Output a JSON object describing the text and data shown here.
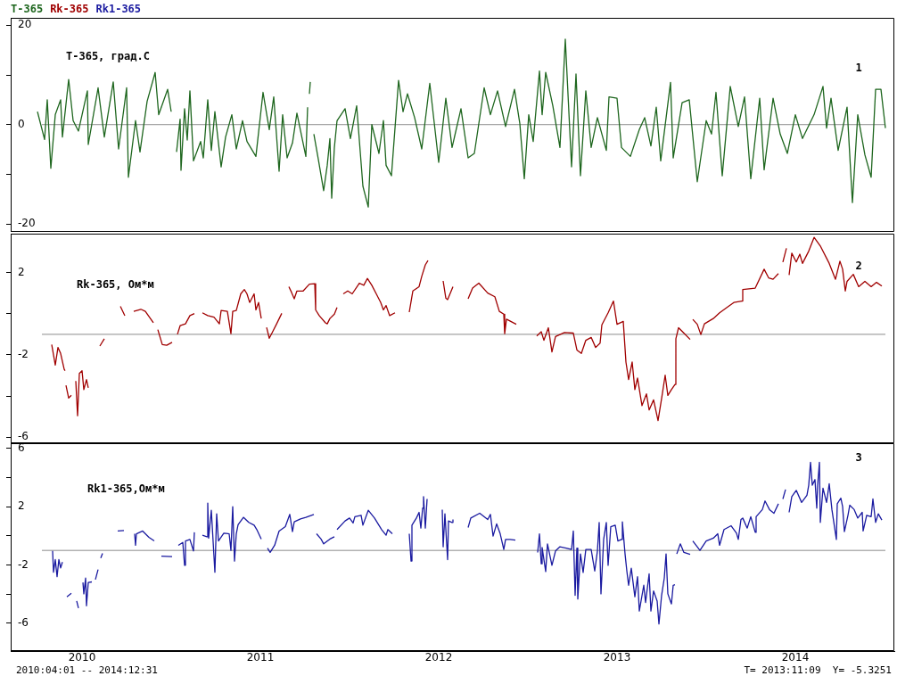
{
  "chart_data": [
    {
      "type": "line",
      "title": "T-365, град.С",
      "annotations": [
        "1"
      ],
      "legend": "top left",
      "tick_labels": "y",
      "grid": false,
      "xlim": [
        2009.6,
        2014.555
      ],
      "xticks": [
        2010,
        2011,
        2012,
        2013,
        2014
      ],
      "ylim": [
        -21.6,
        21.5
      ],
      "yticks": [
        20,
        {
          "value": 10,
          "label": null
        },
        0,
        {
          "value": -10,
          "label": null
        },
        -20
      ],
      "ref_lines": [
        {
          "axis": "y",
          "value": 0,
          "color": "#8c8c8c"
        }
      ],
      "series": [
        {
          "name": "T-365",
          "color": "#1e661e",
          "x": [
            2009.75,
            2009.79,
            2009.805,
            2009.825,
            2009.85,
            2009.88,
            2009.89,
            2009.925,
            2009.95,
            2009.98,
            2010.03,
            2010.035,
            2010.09,
            2010.125,
            2010.175,
            2010.205,
            2010.25,
            2010.26,
            2010.3,
            2010.325,
            2010.365,
            2010.41,
            2010.43,
            2010.48,
            2010.5,
            2010.51,
            2010.53,
            2010.55,
            2010.555,
            2010.575,
            2010.59,
            2010.605,
            2010.625,
            2010.665,
            2010.68,
            2010.705,
            2010.725,
            2010.745,
            2010.78,
            2010.805,
            2010.84,
            2010.865,
            2010.9,
            2010.925,
            2010.975,
            2011.015,
            2011.05,
            2011.075,
            2011.105,
            2011.125,
            2011.15,
            2011.18,
            2011.205,
            2011.255,
            2011.265,
            2011.27,
            2011.275,
            2011.28,
            2011.285,
            2011.3,
            2011.325,
            2011.355,
            2011.375,
            2011.39,
            2011.4,
            2011.415,
            2011.43,
            2011.475,
            2011.505,
            2011.54,
            2011.575,
            2011.605,
            2011.625,
            2011.665,
            2011.69,
            2011.705,
            2011.735,
            2011.775,
            2011.8,
            2011.825,
            2011.865,
            2011.905,
            2011.95,
            2012,
            2012.04,
            2012.075,
            2012.125,
            2012.165,
            2012.2,
            2012.255,
            2012.29,
            2012.33,
            2012.375,
            2012.425,
            2012.455,
            2012.48,
            2012.505,
            2012.53,
            2012.565,
            2012.58,
            2012.6,
            2012.64,
            2012.68,
            2012.71,
            2012.745,
            2012.77,
            2012.795,
            2012.825,
            2012.855,
            2012.89,
            2012.94,
            2012.955,
            2013,
            2013.025,
            2013.075,
            2013.125,
            2013.155,
            2013.19,
            2013.22,
            2013.245,
            2013.3,
            2013.315,
            2013.365,
            2013.405,
            2013.45,
            2013.5,
            2013.53,
            2013.555,
            2013.59,
            2013.635,
            2013.68,
            2013.715,
            2013.75,
            2013.8,
            2013.825,
            2013.875,
            2013.915,
            2013.955,
            2014,
            2014.04,
            2014.105,
            2014.155,
            2014.175,
            2014.2,
            2014.24,
            2014.29,
            2014.32,
            2014.35,
            2014.39,
            2014.425,
            2014.45,
            2014.48,
            2014.505
          ],
          "values": [
            2.6,
            -3,
            5,
            -8.8,
            2,
            5,
            -2.5,
            9.1,
            0.8,
            -1.3,
            6.8,
            -4,
            7.4,
            -2.5,
            8.6,
            -4.9,
            7.4,
            -10.6,
            0.8,
            -5.5,
            4.7,
            10.5,
            2,
            7.1,
            2.6,
            null,
            -5.5,
            1.1,
            -9.2,
            3.2,
            -3.1,
            6.8,
            -7.3,
            -3.4,
            -6.7,
            5,
            -5.2,
            2.6,
            -8.5,
            -2.5,
            2,
            -4.9,
            0.8,
            -3.4,
            -6.4,
            6.5,
            -1,
            5.6,
            -9.4,
            2,
            -6.7,
            -3.7,
            2.3,
            -6.4,
            3.5,
            null,
            6.2,
            8.6,
            null,
            -1.9,
            -7,
            -13.3,
            -8.2,
            -2.8,
            -14.8,
            -4.6,
            0.8,
            3.2,
            -2.8,
            3.8,
            -12.4,
            -16.6,
            0,
            -5.8,
            0.8,
            -8.2,
            -10.3,
            8.9,
            2.6,
            6.2,
            1.4,
            -4.9,
            8.3,
            -7.6,
            5.3,
            -4.6,
            3.2,
            -6.7,
            -5.8,
            7.4,
            2,
            6.8,
            -0.4,
            7.1,
            0.2,
            -10.9,
            2,
            -3.4,
            10.8,
            2,
            10.5,
            3.8,
            -4.6,
            17.2,
            -8.5,
            10.2,
            -10.3,
            6.8,
            -4.6,
            1.4,
            -5.2,
            5.6,
            5.3,
            -4.6,
            -6.4,
            -1,
            1.4,
            -4.3,
            3.5,
            -7.3,
            8.5,
            -6.7,
            4.4,
            5,
            -11.5,
            0.8,
            -1.9,
            6.5,
            -10.3,
            7.7,
            -0.4,
            5.6,
            -10.9,
            5.3,
            -9.1,
            5.3,
            -1.9,
            -5.8,
            2,
            -2.8,
            2,
            7.7,
            -0.7,
            5.3,
            -5.2,
            3.5,
            -15.7,
            2,
            -6.1,
            -10.6,
            7.1,
            7.1,
            -0.7
          ]
        }
      ]
    },
    {
      "type": "line",
      "title": "Rk-365, Ом*м",
      "annotations": [
        "2"
      ],
      "legend": "top left",
      "tick_labels": "y",
      "grid": false,
      "xlim": [
        2009.6,
        2014.555
      ],
      "xticks": [
        2010,
        2011,
        2012,
        2013,
        2014
      ],
      "ylim": [
        -6.3,
        3.9
      ],
      "yticks": [
        2,
        {
          "value": 0,
          "label": null
        },
        -2,
        {
          "value": -4,
          "label": null
        },
        -6
      ],
      "ref_lines": [
        {
          "axis": "y",
          "value": -1,
          "color": "#8c8c8c"
        }
      ],
      "series": [
        {
          "name": "Rk-365",
          "color": "#a00000",
          "x": [
            2009.83,
            2009.85,
            2009.865,
            2009.88,
            2009.9,
            2009.905,
            2009.907,
            2009.91,
            2009.925,
            2009.94,
            2009.95,
            2009.965,
            2009.975,
            2009.985,
            2010,
            2010.01,
            2010.025,
            2010.035,
            2010.05,
            2010.1,
            2010.125,
            2010.15,
            2010.215,
            2010.24,
            2010.245,
            2010.29,
            2010.33,
            2010.355,
            2010.4,
            2010.41,
            2010.425,
            2010.45,
            2010.475,
            2010.505,
            2010.51,
            2010.535,
            2010.55,
            2010.58,
            2010.605,
            2010.63,
            2010.65,
            2010.675,
            2010.705,
            2010.74,
            2010.77,
            2010.78,
            2010.815,
            2010.835,
            2010.845,
            2010.865,
            2010.89,
            2010.91,
            2010.925,
            2010.94,
            2010.965,
            2010.975,
            2010.99,
            2011.005,
            2011.01,
            2011.035,
            2011.05,
            2011.065,
            2011.09,
            2011.12,
            2011.13,
            2011.16,
            2011.175,
            2011.19,
            2011.205,
            2011.24,
            2011.275,
            2011.305,
            2011.31,
            2011.33,
            2011.365,
            2011.375,
            2011.39,
            2011.415,
            2011.43,
            2011.44,
            2011.465,
            2011.49,
            2011.515,
            2011.555,
            2011.58,
            2011.6,
            2011.625,
            2011.65,
            2011.675,
            2011.69,
            2011.705,
            2011.725,
            2011.755,
            2011.8,
            2011.835,
            2011.855,
            2011.89,
            2011.905,
            2011.925,
            2011.94,
            2011.96,
            2012.025,
            2012.04,
            2012.05,
            2012.08,
            2012.1,
            2012.165,
            2012.19,
            2012.225,
            2012.275,
            2012.315,
            2012.34,
            2012.365,
            2012.37,
            2012.38,
            2012.435,
            2012.5,
            2012.55,
            2012.575,
            2012.59,
            2012.615,
            2012.635,
            2012.655,
            2012.705,
            2012.755,
            2012.775,
            2012.8,
            2012.825,
            2012.855,
            2012.88,
            2012.905,
            2012.915,
            2012.95,
            2012.98,
            2013,
            2013.035,
            2013.05,
            2013.065,
            2013.085,
            2013.1,
            2013.115,
            2013.14,
            2013.165,
            2013.18,
            2013.205,
            2013.23,
            2013.25,
            2013.27,
            2013.285,
            2013.305,
            2013.325,
            2013.33,
            2013.345,
            2013.375,
            2013.41,
            2013.42,
            2013.425,
            2013.45,
            2013.47,
            2013.49,
            2013.54,
            2013.575,
            2013.625,
            2013.655,
            2013.7,
            2013.705,
            2013.775,
            2013.825,
            2013.85,
            2013.875,
            2013.905,
            2013.91,
            2013.93,
            2013.95,
            2013.96,
            2013.965,
            2013.98,
            2014.005,
            2014.025,
            2014.04,
            2014.075,
            2014.105,
            2014.14,
            2014.19,
            2014.225,
            2014.25,
            2014.265,
            2014.28,
            2014.29,
            2014.325,
            2014.355,
            2014.39,
            2014.425,
            2014.455,
            2014.485
          ],
          "values": [
            -1.5,
            -2.5,
            -1.64,
            -1.93,
            -2.7,
            -2.77,
            null,
            -3.48,
            -4.1,
            -3.97,
            null,
            -3.27,
            -4.96,
            -2.9,
            -2.77,
            -3.69,
            -3.2,
            -3.6,
            null,
            -1.57,
            -1.22,
            null,
            0.36,
            -0.09,
            null,
            0.12,
            0.22,
            0.12,
            -0.44,
            null,
            -0.77,
            -1.5,
            -1.53,
            -1.39,
            null,
            -1,
            -0.58,
            -0.49,
            -0.09,
            0.01,
            null,
            0.05,
            -0.09,
            -0.16,
            -0.49,
            0.16,
            0.12,
            -0.97,
            0.12,
            0.16,
            0.97,
            1.18,
            0.97,
            0.55,
            0.97,
            0.19,
            0.55,
            -0.23,
            null,
            -0.66,
            -1.19,
            -0.94,
            -0.51,
            0.02,
            null,
            1.32,
            1.04,
            0.73,
            1.11,
            1.11,
            1.44,
            1.46,
            0.19,
            -0.09,
            -0.44,
            -0.49,
            -0.23,
            -0.02,
            0.31,
            null,
            0.97,
            1.11,
            0.97,
            1.49,
            1.39,
            1.72,
            1.39,
            0.97,
            0.55,
            0.19,
            0.4,
            -0.09,
            0.05,
            null,
            0.08,
            1.11,
            1.32,
            1.82,
            2.38,
            2.59,
            null,
            1.6,
            0.76,
            0.69,
            1.32,
            null,
            0.73,
            1.25,
            1.49,
            1.01,
            0.83,
            0.12,
            -0.02,
            -0.97,
            -0.26,
            -0.51,
            null,
            -1.08,
            -0.87,
            -1.29,
            -0.68,
            -1.86,
            -1.11,
            -0.91,
            -0.94,
            -1.76,
            -1.93,
            -1.29,
            -1.15,
            -1.64,
            -1.43,
            -0.54,
            0.05,
            0.62,
            -0.51,
            -0.37,
            -2.35,
            -3.2,
            -2.35,
            -3.69,
            -3.13,
            -4.47,
            -3.9,
            -4.68,
            -4.19,
            -5.2,
            -4.12,
            -2.99,
            -3.97,
            -3.69,
            -3.44,
            -1.22,
            -0.68,
            -0.94,
            -1.25,
            null,
            -0.27,
            -0.51,
            -1.01,
            -0.49,
            -0.23,
            0.05,
            0.36,
            0.55,
            0.62,
            1.18,
            1.25,
            2.17,
            1.75,
            1.68,
            1.96,
            null,
            2.52,
            3.19,
            null,
            1.89,
            2.95,
            2.52,
            2.9,
            2.45,
            3.05,
            3.72,
            3.3,
            2.45,
            1.68,
            2.56,
            2.17,
            1.11,
            1.58,
            1.92,
            1.32,
            1.58,
            1.32,
            1.53,
            1.35
          ]
        }
      ]
    },
    {
      "type": "line",
      "title": "Rk1-365,Ом*м",
      "annotations": [
        "3",
        "2010:04:01 -- 2014:12:31",
        "T= 2013:11:09  Y= -5.3251"
      ],
      "legend": "top left",
      "grid": false,
      "xlim": [
        2009.6,
        2014.555
      ],
      "xticks": [
        2010,
        2011,
        2012,
        2013,
        2014
      ],
      "ylim": [
        -7.9,
        6.35
      ],
      "yticks": [
        6,
        {
          "value": 4,
          "label": null
        },
        2,
        {
          "value": 0,
          "label": null
        },
        -2,
        {
          "value": -4,
          "label": null
        },
        -6
      ],
      "ref_lines": [
        {
          "axis": "y",
          "value": -1,
          "color": "#8c8c8c"
        }
      ],
      "series": [
        {
          "name": "Rk1-365",
          "color": "#1a1aa0",
          "x": [
            2009.835,
            2009.84,
            2009.85,
            2009.86,
            2009.87,
            2009.88,
            2009.89,
            2009.9,
            2009.915,
            2009.94,
            2009.95,
            2009.97,
            2009.98,
            2009.99,
            2010.005,
            2010.01,
            2010.02,
            2010.025,
            2010.035,
            2010.055,
            2010.06,
            2010.075,
            2010.09,
            2010.1,
            2010.105,
            2010.115,
            2010.12,
            2010.2,
            2010.235,
            2010.24,
            2010.295,
            2010.3,
            2010.305,
            2010.34,
            2010.375,
            2010.405,
            2010.41,
            2010.445,
            2010.505,
            2010.51,
            2010.54,
            2010.565,
            2010.575,
            2010.58,
            2010.605,
            2010.625,
            2010.63,
            2010.65,
            2010.675,
            2010.7,
            2010.705,
            2010.71,
            2010.725,
            2010.745,
            2010.755,
            2010.765,
            2010.795,
            2010.825,
            2010.835,
            2010.845,
            2010.855,
            2010.865,
            2010.875,
            2010.905,
            2010.935,
            2010.965,
            2010.98,
            2011.005,
            2011.01,
            2011.04,
            2011.055,
            2011.08,
            2011.105,
            2011.14,
            2011.165,
            2011.18,
            2011.19,
            2011.225,
            2011.255,
            2011.3,
            2011.31,
            2011.315,
            2011.34,
            2011.355,
            2011.39,
            2011.415,
            2011.42,
            2011.43,
            2011.475,
            2011.5,
            2011.52,
            2011.53,
            2011.565,
            2011.575,
            2011.605,
            2011.64,
            2011.68,
            2011.705,
            2011.715,
            2011.74,
            2011.8,
            2011.835,
            2011.845,
            2011.85,
            2011.875,
            2011.89,
            2011.9,
            2011.91,
            2011.915,
            2011.925,
            2011.935,
            2011.96,
            2012.02,
            2012.025,
            2012.035,
            2012.05,
            2012.055,
            2012.075,
            2012.08,
            2012.1,
            2012.165,
            2012.18,
            2012.23,
            2012.275,
            2012.29,
            2012.305,
            2012.325,
            2012.345,
            2012.365,
            2012.375,
            2012.4,
            2012.43,
            2012.5,
            2012.555,
            2012.565,
            2012.575,
            2012.58,
            2012.6,
            2012.61,
            2012.635,
            2012.655,
            2012.68,
            2012.715,
            2012.745,
            2012.755,
            2012.765,
            2012.775,
            2012.78,
            2012.795,
            2012.81,
            2012.825,
            2012.855,
            2012.875,
            2012.89,
            2012.9,
            2012.91,
            2012.925,
            2012.94,
            2012.95,
            2012.965,
            2012.99,
            2013.005,
            2013.025,
            2013.03,
            2013.045,
            2013.055,
            2013.065,
            2013.08,
            2013.1,
            2013.115,
            2013.125,
            2013.15,
            2013.16,
            2013.18,
            2013.19,
            2013.205,
            2013.225,
            2013.235,
            2013.25,
            2013.265,
            2013.275,
            2013.285,
            2013.305,
            2013.315,
            2013.325,
            2013.327,
            2013.335,
            2013.355,
            2013.375,
            2013.41,
            2013.42,
            2013.425,
            2013.465,
            2013.5,
            2013.54,
            2013.565,
            2013.575,
            2013.6,
            2013.64,
            2013.67,
            2013.68,
            2013.695,
            2013.705,
            2013.73,
            2013.75,
            2013.775,
            2013.78,
            2013.815,
            2013.83,
            2013.855,
            2013.88,
            2013.905,
            2013.91,
            2013.93,
            2013.945,
            2013.955,
            2013.965,
            2013.98,
            2014.005,
            2014.035,
            2014.065,
            2014.075,
            2014.085,
            2014.095,
            2014.11,
            2014.12,
            2014.125,
            2014.135,
            2014.14,
            2014.155,
            2014.175,
            2014.19,
            2014.205,
            2014.23,
            2014.235,
            2014.255,
            2014.265,
            2014.275,
            2014.295,
            2014.305,
            2014.33,
            2014.35,
            2014.375,
            2014.38,
            2014.4,
            2014.425,
            2014.435,
            2014.45,
            2014.465,
            2014.485
          ],
          "values": [
            -1.04,
            -2.5,
            -1.63,
            -2.8,
            -1.63,
            -2.2,
            -1.8,
            null,
            -4.18,
            -3.94,
            null,
            -4.47,
            -4.96,
            null,
            -3.2,
            -3.98,
            -2.9,
            -4.8,
            -3.2,
            -3.16,
            null,
            -3,
            -2.31,
            null,
            -1.53,
            -1.2,
            null,
            0.33,
            0.37,
            null,
            0.14,
            -0.65,
            0.14,
            0.33,
            -0.1,
            -0.35,
            null,
            -1.39,
            -1.43,
            null,
            -0.65,
            -0.45,
            -2.02,
            -0.35,
            -0.25,
            -1.04,
            0.24,
            null,
            0.04,
            -0.06,
            2.25,
            -0.16,
            1.75,
            -2.5,
            1.51,
            -0.35,
            0.18,
            0.14,
            -1,
            2,
            -1.73,
            0.14,
            0.76,
            1.27,
            0.92,
            0.73,
            0.43,
            -0.22,
            null,
            -0.84,
            -1.14,
            -0.65,
            0.33,
            0.63,
            1.47,
            0.29,
            0.96,
            1.16,
            1.27,
            1.47,
            null,
            0.14,
            -0.22,
            -0.55,
            -0.22,
            -0.06,
            null,
            0.43,
            1.02,
            1.22,
            0.88,
            1.31,
            1.41,
            0.73,
            1.75,
            1.22,
            0.43,
            0.04,
            0.43,
            0.14,
            null,
            0.14,
            -1.73,
            0.73,
            1.22,
            1.61,
            0.53,
            1.9,
            2.69,
            0.53,
            2.53,
            null,
            1.8,
            -0.75,
            1.51,
            -1.63,
            1.02,
            0.92,
            1.12,
            null,
            0.57,
            1.22,
            1.55,
            1.12,
            1.47,
            -0.02,
            0.82,
            0.14,
            -0.94,
            -0.25,
            -0.25,
            -0.29,
            null,
            -1.14,
            0.14,
            -1.92,
            -0.8,
            -2.45,
            -0.55,
            -2.02,
            -1.04,
            -0.75,
            -0.84,
            -0.94,
            0.33,
            -4.08,
            -0.84,
            -4.33,
            -1.24,
            -2.51,
            -0.94,
            -0.94,
            -2.41,
            -1.04,
            0.92,
            -3.98,
            -0.25,
            0.92,
            -2.02,
            0.63,
            0.73,
            -0.35,
            -0.25,
            0.96,
            -1.24,
            -2.41,
            -3.39,
            -2.22,
            -4.18,
            -2.8,
            -5.16,
            -3.39,
            -4.57,
            -2.61,
            -5.16,
            -3.78,
            -4.47,
            -6.04,
            -4.08,
            -2.9,
            -1.24,
            -3.98,
            -4.67,
            -3.39,
            -3.35,
            null,
            -1.24,
            -0.55,
            -1.14,
            -1.27,
            null,
            -0.35,
            -1,
            -0.35,
            -0.16,
            0.14,
            -0.65,
            0.43,
            0.69,
            0.18,
            -0.25,
            1.12,
            1.22,
            0.53,
            1.31,
            0.24,
            1.31,
            1.8,
            2.39,
            1.8,
            1.55,
            2.2,
            null,
            2.53,
            3.18,
            null,
            1.61,
            2.69,
            3.12,
            2.29,
            2.78,
            3.47,
            5.04,
            3.47,
            3.86,
            1.9,
            3.47,
            5.04,
            0.92,
            3.27,
            2.29,
            3.57,
            1.8,
            -0.25,
            2.2,
            2.59,
            2,
            0.29,
            1.41,
            2.1,
            1.8,
            1.22,
            1.61,
            0.33,
            1.41,
            1.31,
            2.53,
            0.92,
            1.51,
            1.08
          ]
        }
      ]
    }
  ]
}
